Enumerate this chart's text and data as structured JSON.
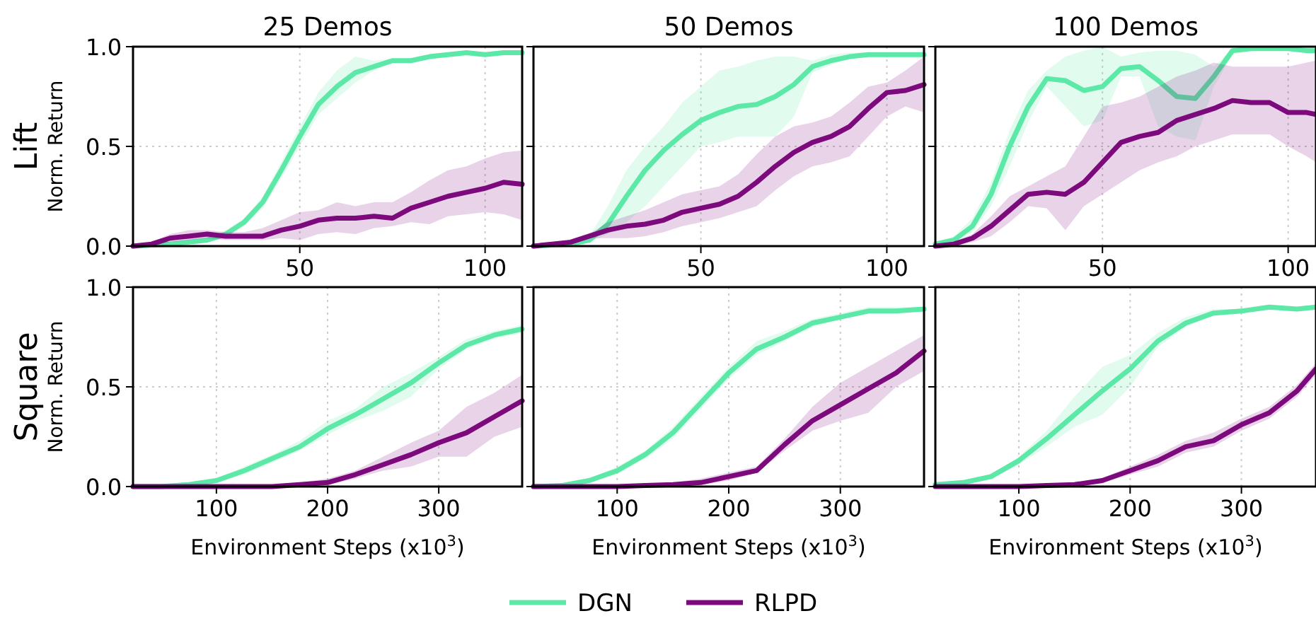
{
  "chart_data": [
    {
      "type": "line",
      "title": "25 Demos",
      "ylabel": "Norm. Return",
      "annotations": [
        "Lift"
      ],
      "xlim": [
        5,
        110
      ],
      "xticks": [
        50,
        100
      ],
      "ylim": [
        0,
        1
      ],
      "yticks": [
        {
          "value": 0,
          "label": "0.0"
        },
        {
          "value": 0.5,
          "label": "0.5"
        },
        {
          "value": 1,
          "label": "1.0"
        }
      ],
      "grid": true,
      "x": [
        5,
        10,
        15,
        20,
        25,
        30,
        35,
        40,
        45,
        50,
        55,
        60,
        65,
        70,
        75,
        80,
        85,
        90,
        95,
        100,
        105,
        110
      ],
      "series": [
        {
          "color": "#5ce8a6",
          "values": [
            0,
            0.005,
            0.01,
            0.02,
            0.03,
            0.06,
            0.12,
            0.22,
            0.38,
            0.55,
            0.71,
            0.8,
            0.87,
            0.9,
            0.93,
            0.93,
            0.95,
            0.96,
            0.97,
            0.96,
            0.97,
            0.97
          ],
          "lower": [
            0,
            0,
            0,
            0.01,
            0.02,
            0.04,
            0.1,
            0.19,
            0.34,
            0.5,
            0.66,
            0.74,
            0.82,
            0.88,
            0.92,
            0.92,
            0.94,
            0.95,
            0.96,
            0.95,
            0.96,
            0.96
          ],
          "upper": [
            0.01,
            0.01,
            0.02,
            0.03,
            0.04,
            0.08,
            0.14,
            0.25,
            0.42,
            0.6,
            0.77,
            0.88,
            0.95,
            0.93,
            0.94,
            0.94,
            0.96,
            0.97,
            0.98,
            0.97,
            0.98,
            0.98
          ]
        },
        {
          "color": "#7d0a7d",
          "values": [
            0,
            0.01,
            0.04,
            0.05,
            0.06,
            0.05,
            0.05,
            0.05,
            0.08,
            0.1,
            0.13,
            0.14,
            0.14,
            0.15,
            0.14,
            0.19,
            0.22,
            0.25,
            0.27,
            0.29,
            0.32,
            0.31
          ],
          "lower": [
            0,
            0,
            0.02,
            0.03,
            0.04,
            0.03,
            0.03,
            0.03,
            0.04,
            0.03,
            0.06,
            0.07,
            0.06,
            0.09,
            0.1,
            0.12,
            0.11,
            0.15,
            0.16,
            0.17,
            0.16,
            0.13
          ],
          "upper": [
            0.01,
            0.02,
            0.06,
            0.08,
            0.08,
            0.07,
            0.07,
            0.09,
            0.13,
            0.17,
            0.18,
            0.22,
            0.2,
            0.22,
            0.22,
            0.27,
            0.33,
            0.38,
            0.4,
            0.44,
            0.47,
            0.48
          ]
        }
      ]
    },
    {
      "type": "line",
      "title": "50 Demos",
      "xlim": [
        5,
        110
      ],
      "xticks": [
        50,
        100
      ],
      "ylim": [
        0,
        1
      ],
      "yticks": [
        0,
        0.5,
        1
      ],
      "grid": true,
      "tick_labels": "x",
      "x": [
        5,
        10,
        15,
        20,
        25,
        30,
        35,
        40,
        45,
        50,
        55,
        60,
        65,
        70,
        75,
        80,
        85,
        90,
        95,
        100,
        105,
        110
      ],
      "series": [
        {
          "color": "#5ce8a6",
          "values": [
            0,
            0.005,
            0.01,
            0.03,
            0.11,
            0.25,
            0.38,
            0.48,
            0.56,
            0.63,
            0.67,
            0.7,
            0.71,
            0.75,
            0.81,
            0.9,
            0.93,
            0.95,
            0.96,
            0.96,
            0.96,
            0.96
          ],
          "lower": [
            0,
            0,
            0,
            0.02,
            0.06,
            0.12,
            0.2,
            0.3,
            0.4,
            0.5,
            0.52,
            0.55,
            0.55,
            0.55,
            0.65,
            0.87,
            0.91,
            0.94,
            0.95,
            0.95,
            0.95,
            0.95
          ],
          "upper": [
            0.01,
            0.01,
            0.02,
            0.05,
            0.2,
            0.38,
            0.5,
            0.6,
            0.72,
            0.8,
            0.88,
            0.9,
            0.93,
            0.95,
            0.95,
            0.93,
            0.96,
            0.97,
            0.97,
            0.97,
            0.97,
            0.97
          ]
        },
        {
          "color": "#7d0a7d",
          "values": [
            0,
            0.01,
            0.02,
            0.05,
            0.08,
            0.1,
            0.11,
            0.13,
            0.17,
            0.19,
            0.21,
            0.25,
            0.32,
            0.4,
            0.47,
            0.52,
            0.55,
            0.6,
            0.69,
            0.77,
            0.78,
            0.81
          ],
          "lower": [
            0,
            0,
            0.01,
            0.04,
            0.04,
            0.04,
            0.05,
            0.07,
            0.1,
            0.12,
            0.14,
            0.17,
            0.2,
            0.28,
            0.35,
            0.4,
            0.42,
            0.45,
            0.55,
            0.65,
            0.7,
            0.67
          ],
          "upper": [
            0.01,
            0.02,
            0.03,
            0.06,
            0.12,
            0.15,
            0.18,
            0.22,
            0.26,
            0.28,
            0.3,
            0.36,
            0.46,
            0.55,
            0.6,
            0.62,
            0.65,
            0.72,
            0.8,
            0.82,
            0.88,
            0.95
          ]
        }
      ]
    },
    {
      "type": "line",
      "title": "100 Demos",
      "xlim": [
        5,
        107.5
      ],
      "xticks": [
        50,
        100
      ],
      "ylim": [
        0,
        1
      ],
      "yticks": [
        0,
        0.5,
        1
      ],
      "grid": true,
      "tick_labels": "x",
      "x": [
        5,
        10,
        15,
        20,
        25,
        30,
        35,
        40,
        45,
        50,
        55,
        60,
        65,
        70,
        75,
        80,
        85,
        90,
        95,
        100,
        105,
        107.5
      ],
      "series": [
        {
          "color": "#5ce8a6",
          "values": [
            0.01,
            0.03,
            0.1,
            0.26,
            0.5,
            0.7,
            0.84,
            0.83,
            0.78,
            0.8,
            0.89,
            0.9,
            0.83,
            0.75,
            0.74,
            0.85,
            0.98,
            0.99,
            0.99,
            0.99,
            0.98,
            0.98
          ],
          "lower": [
            0,
            0.02,
            0.07,
            0.2,
            0.4,
            0.62,
            0.8,
            0.7,
            0.6,
            0.63,
            0.85,
            0.85,
            0.6,
            0.55,
            0.53,
            0.8,
            0.96,
            0.98,
            0.98,
            0.98,
            0.97,
            0.97
          ],
          "upper": [
            0.02,
            0.05,
            0.14,
            0.32,
            0.58,
            0.78,
            0.88,
            0.95,
            0.98,
            1.0,
            0.95,
            0.97,
            0.98,
            0.98,
            0.96,
            0.9,
            0.99,
            1.0,
            1.0,
            1.0,
            0.99,
            0.99
          ]
        },
        {
          "color": "#7d0a7d",
          "values": [
            0,
            0.01,
            0.04,
            0.1,
            0.18,
            0.26,
            0.27,
            0.26,
            0.32,
            0.42,
            0.52,
            0.55,
            0.57,
            0.63,
            0.66,
            0.69,
            0.73,
            0.72,
            0.72,
            0.67,
            0.67,
            0.66
          ],
          "lower": [
            0,
            0,
            0.02,
            0.05,
            0.12,
            0.2,
            0.19,
            0.08,
            0.2,
            0.26,
            0.32,
            0.38,
            0.42,
            0.45,
            0.5,
            0.53,
            0.56,
            0.56,
            0.56,
            0.5,
            0.45,
            0.42
          ],
          "upper": [
            0.01,
            0.02,
            0.06,
            0.15,
            0.25,
            0.3,
            0.35,
            0.4,
            0.55,
            0.7,
            0.72,
            0.75,
            0.8,
            0.85,
            0.88,
            0.92,
            0.9,
            0.9,
            0.9,
            0.9,
            0.92,
            0.93
          ]
        }
      ]
    },
    {
      "type": "line",
      "xlabel": "Environment Steps (x10$^{3}$)",
      "ylabel": "Norm. Return",
      "annotations": [
        "Square"
      ],
      "xlim": [
        25,
        375
      ],
      "xticks": [
        100,
        200,
        300
      ],
      "ylim": [
        0,
        1
      ],
      "yticks": [
        {
          "value": 0,
          "label": "0.0"
        },
        {
          "value": 0.5,
          "label": "0.5"
        },
        {
          "value": 1,
          "label": "1.0"
        }
      ],
      "grid": true,
      "x": [
        25,
        50,
        75,
        100,
        125,
        150,
        175,
        200,
        225,
        250,
        275,
        300,
        325,
        350,
        375
      ],
      "series": [
        {
          "color": "#5ce8a6",
          "values": [
            0,
            0,
            0.01,
            0.03,
            0.08,
            0.14,
            0.2,
            0.29,
            0.36,
            0.44,
            0.52,
            0.62,
            0.71,
            0.76,
            0.79
          ],
          "lower": [
            0,
            0,
            0,
            0.02,
            0.06,
            0.12,
            0.18,
            0.26,
            0.33,
            0.38,
            0.45,
            0.59,
            0.69,
            0.74,
            0.77
          ],
          "upper": [
            0.01,
            0.01,
            0.02,
            0.04,
            0.1,
            0.16,
            0.23,
            0.33,
            0.39,
            0.5,
            0.57,
            0.65,
            0.74,
            0.78,
            0.81
          ]
        },
        {
          "color": "#7d0a7d",
          "values": [
            0,
            0,
            0,
            0,
            0,
            0,
            0.01,
            0.02,
            0.06,
            0.11,
            0.16,
            0.22,
            0.27,
            0.35,
            0.43
          ],
          "lower": [
            0,
            0,
            0,
            0,
            0,
            0,
            0,
            0.01,
            0.04,
            0.08,
            0.1,
            0.15,
            0.15,
            0.25,
            0.3
          ],
          "upper": [
            0.01,
            0.01,
            0.01,
            0.01,
            0.01,
            0.01,
            0.02,
            0.04,
            0.08,
            0.15,
            0.22,
            0.28,
            0.4,
            0.47,
            0.56
          ]
        }
      ]
    },
    {
      "type": "line",
      "xlabel": "Environment Steps (x10$^{3}$)",
      "xlim": [
        25,
        375
      ],
      "xticks": [
        100,
        200,
        300
      ],
      "ylim": [
        0,
        1
      ],
      "yticks": [
        0,
        0.5,
        1
      ],
      "grid": true,
      "tick_labels": "x",
      "legend": "bottom",
      "x": [
        25,
        50,
        75,
        100,
        125,
        150,
        175,
        200,
        225,
        250,
        275,
        300,
        325,
        350,
        375
      ],
      "series": [
        {
          "name": "DGN",
          "color": "#5ce8a6",
          "values": [
            0,
            0.005,
            0.03,
            0.08,
            0.16,
            0.27,
            0.42,
            0.57,
            0.69,
            0.75,
            0.82,
            0.85,
            0.88,
            0.88,
            0.89
          ],
          "lower": [
            0,
            0,
            0.02,
            0.06,
            0.14,
            0.24,
            0.39,
            0.54,
            0.66,
            0.73,
            0.8,
            0.84,
            0.87,
            0.87,
            0.88
          ],
          "upper": [
            0.01,
            0.01,
            0.04,
            0.1,
            0.18,
            0.3,
            0.45,
            0.6,
            0.73,
            0.78,
            0.84,
            0.87,
            0.9,
            0.9,
            0.9
          ]
        },
        {
          "name": "RLPD",
          "color": "#7d0a7d",
          "values": [
            0,
            0,
            0,
            0,
            0.005,
            0.01,
            0.02,
            0.05,
            0.08,
            0.21,
            0.33,
            0.41,
            0.49,
            0.57,
            0.68
          ],
          "lower": [
            0,
            0,
            0,
            0,
            0,
            0,
            0.01,
            0.03,
            0.07,
            0.18,
            0.28,
            0.33,
            0.37,
            0.5,
            0.58
          ],
          "upper": [
            0.01,
            0.01,
            0.01,
            0.01,
            0.01,
            0.02,
            0.04,
            0.07,
            0.1,
            0.24,
            0.4,
            0.52,
            0.6,
            0.68,
            0.76
          ]
        }
      ]
    },
    {
      "type": "line",
      "xlabel": "Environment Steps (x10$^{3}$)",
      "xlim": [
        25,
        367
      ],
      "xticks": [
        100,
        200,
        300
      ],
      "ylim": [
        0,
        1
      ],
      "yticks": [
        0,
        0.5,
        1
      ],
      "grid": true,
      "tick_labels": "x",
      "x": [
        25,
        50,
        75,
        100,
        125,
        150,
        175,
        200,
        225,
        250,
        275,
        300,
        325,
        350,
        367
      ],
      "series": [
        {
          "color": "#5ce8a6",
          "values": [
            0.01,
            0.02,
            0.05,
            0.13,
            0.24,
            0.36,
            0.48,
            0.59,
            0.73,
            0.82,
            0.87,
            0.88,
            0.9,
            0.89,
            0.9
          ],
          "lower": [
            0,
            0.01,
            0.04,
            0.11,
            0.2,
            0.3,
            0.36,
            0.5,
            0.7,
            0.8,
            0.86,
            0.87,
            0.89,
            0.88,
            0.89
          ],
          "upper": [
            0.02,
            0.03,
            0.06,
            0.15,
            0.28,
            0.45,
            0.6,
            0.66,
            0.77,
            0.85,
            0.89,
            0.89,
            0.91,
            0.9,
            0.91
          ]
        },
        {
          "color": "#7d0a7d",
          "values": [
            0,
            0,
            0,
            0,
            0.005,
            0.01,
            0.03,
            0.08,
            0.13,
            0.2,
            0.23,
            0.31,
            0.37,
            0.48,
            0.59
          ],
          "lower": [
            0,
            0,
            0,
            0,
            0,
            0,
            0.02,
            0.06,
            0.1,
            0.17,
            0.2,
            0.28,
            0.34,
            0.45,
            0.56
          ],
          "upper": [
            0.01,
            0.01,
            0.01,
            0.01,
            0.01,
            0.02,
            0.04,
            0.1,
            0.16,
            0.23,
            0.27,
            0.34,
            0.4,
            0.51,
            0.62
          ]
        }
      ]
    }
  ]
}
